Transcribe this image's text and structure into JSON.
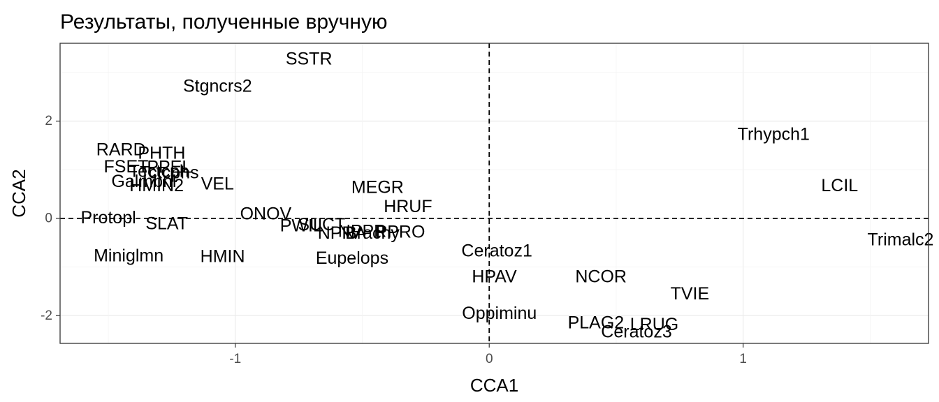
{
  "chart_data": {
    "type": "scatter",
    "title": "Результаты, полученные вручную",
    "xlabel": "CCA1",
    "ylabel": "CCA2",
    "xlim": [
      -1.69,
      1.73
    ],
    "ylim": [
      -2.57,
      3.6
    ],
    "xticks": [
      -1,
      0,
      1
    ],
    "xtick_labels": [
      "-1",
      "0",
      "1"
    ],
    "yticks": [
      -2,
      0,
      2
    ],
    "ytick_labels": [
      "-2",
      "0",
      "2"
    ],
    "grid": true,
    "reference_lines": {
      "x": 0,
      "y": 0,
      "style": "dashed"
    },
    "points": [
      {
        "label": "SSTR",
        "x": -0.71,
        "y": 3.28
      },
      {
        "label": "Stgncrs2",
        "x": -1.07,
        "y": 2.72
      },
      {
        "label": "Trhypch1",
        "x": 1.12,
        "y": 1.73
      },
      {
        "label": "RARD",
        "x": -1.45,
        "y": 1.41
      },
      {
        "label": "PHTH",
        "x": -1.29,
        "y": 1.34
      },
      {
        "label": "FSET",
        "x": -1.43,
        "y": 1.06
      },
      {
        "label": "PPEL",
        "x": -1.26,
        "y": 1.05
      },
      {
        "label": "Tectcph",
        "x": -1.3,
        "y": 0.97
      },
      {
        "label": "Tctcphs",
        "x": -1.26,
        "y": 0.94
      },
      {
        "label": "Galmbnl",
        "x": -1.36,
        "y": 0.76
      },
      {
        "label": "HMIN2",
        "x": -1.31,
        "y": 0.67
      },
      {
        "label": "VEL",
        "x": -1.07,
        "y": 0.71
      },
      {
        "label": "MEGR",
        "x": -0.44,
        "y": 0.64
      },
      {
        "label": "LCIL",
        "x": 1.38,
        "y": 0.67
      },
      {
        "label": "HRUF",
        "x": -0.32,
        "y": 0.24
      },
      {
        "label": "ONOV",
        "x": -0.88,
        "y": 0.09
      },
      {
        "label": "Protopl",
        "x": -1.5,
        "y": 0.01
      },
      {
        "label": "SLAT",
        "x": -1.27,
        "y": -0.11
      },
      {
        "label": "PWIL",
        "x": -0.74,
        "y": -0.15
      },
      {
        "label": "SUCT",
        "x": -0.66,
        "y": -0.13
      },
      {
        "label": "NPRA",
        "x": -0.58,
        "y": -0.3
      },
      {
        "label": "NPPR",
        "x": -0.5,
        "y": -0.27
      },
      {
        "label": "Brachy",
        "x": -0.46,
        "y": -0.3
      },
      {
        "label": "PPRO",
        "x": -0.35,
        "y": -0.28
      },
      {
        "label": "Trimalc2",
        "x": 1.62,
        "y": -0.44
      },
      {
        "label": "Miniglmn",
        "x": -1.42,
        "y": -0.77
      },
      {
        "label": "HMIN",
        "x": -1.05,
        "y": -0.78
      },
      {
        "label": "Eupelops",
        "x": -0.54,
        "y": -0.82
      },
      {
        "label": "Ceratoz1",
        "x": 0.03,
        "y": -0.67
      },
      {
        "label": "HPAV",
        "x": 0.02,
        "y": -1.2
      },
      {
        "label": "NCOR",
        "x": 0.44,
        "y": -1.2
      },
      {
        "label": "TVIE",
        "x": 0.79,
        "y": -1.55
      },
      {
        "label": "Oppiminu",
        "x": 0.04,
        "y": -1.95
      },
      {
        "label": "PLAG2",
        "x": 0.42,
        "y": -2.15
      },
      {
        "label": "LRUG",
        "x": 0.65,
        "y": -2.18
      },
      {
        "label": "Ceratoz3",
        "x": 0.58,
        "y": -2.33
      }
    ]
  }
}
